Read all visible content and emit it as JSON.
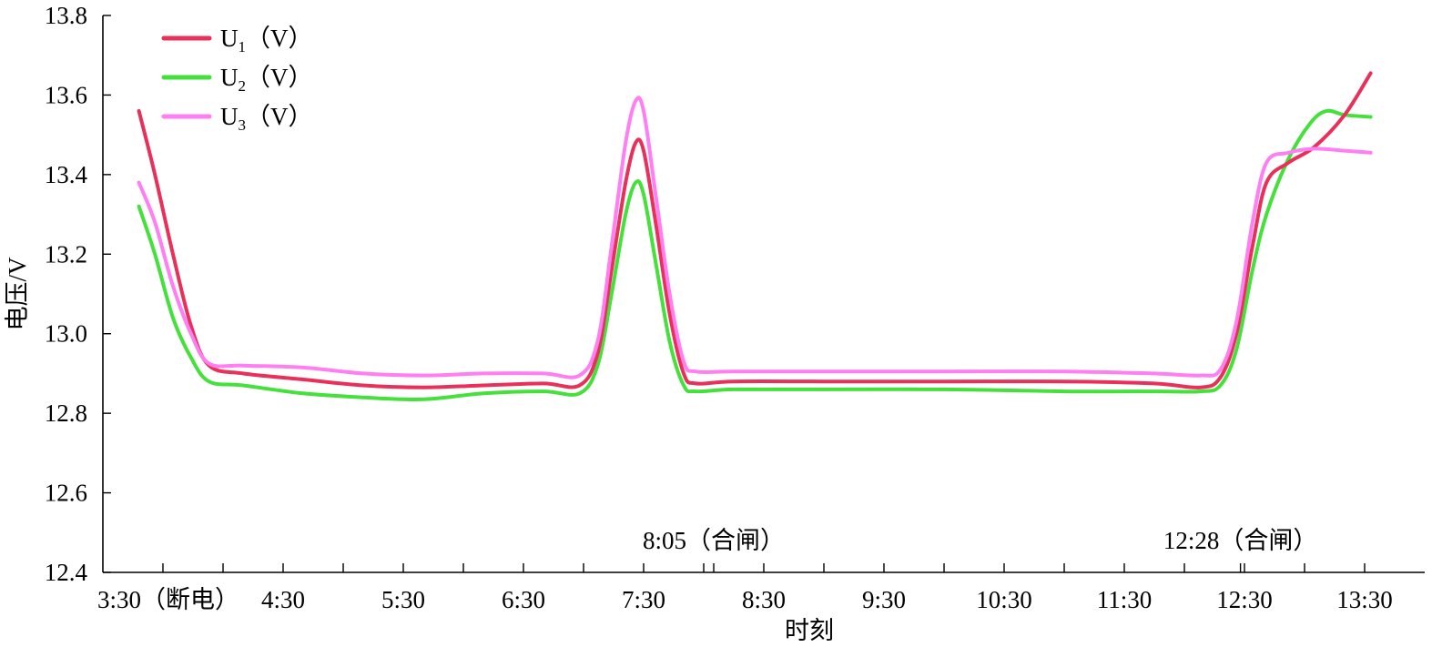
{
  "chart_data": {
    "type": "line",
    "xlabel": "时刻",
    "ylabel": "电压/V",
    "ylim": [
      12.4,
      13.8
    ],
    "yticks": [
      "12.4",
      "12.6",
      "12.8",
      "13.0",
      "13.2",
      "13.4",
      "13.6",
      "13.8"
    ],
    "xlim": [
      "3:00",
      "14:00"
    ],
    "xticks": [
      "3:30（断电）",
      "4:30",
      "5:30",
      "6:30",
      "7:30",
      "8:30",
      "9:30",
      "10:30",
      "11:30",
      "12:30",
      "13:30"
    ],
    "annotations": [
      {
        "text": "8:05（合闸）",
        "x": "8:05"
      },
      {
        "text": "12:28（合闸）",
        "x": "12:28"
      }
    ],
    "legend": {
      "position": "top-left"
    },
    "grid": false,
    "series": [
      {
        "name": "U1(V)",
        "label_main": "U",
        "label_sub": "1",
        "label_unit": "（V）",
        "color": "#e8315a",
        "points": [
          [
            "3:18",
            13.56
          ],
          [
            "3:26",
            13.4
          ],
          [
            "3:35",
            13.2
          ],
          [
            "3:44",
            13.02
          ],
          [
            "3:53",
            12.92
          ],
          [
            "4:10",
            12.9
          ],
          [
            "4:40",
            12.885
          ],
          [
            "5:10",
            12.87
          ],
          [
            "5:40",
            12.865
          ],
          [
            "6:10",
            12.87
          ],
          [
            "6:40",
            12.875
          ],
          [
            "6:58",
            12.87
          ],
          [
            "7:07",
            12.95
          ],
          [
            "7:14",
            13.16
          ],
          [
            "7:21",
            13.38
          ],
          [
            "7:26",
            13.48
          ],
          [
            "7:30",
            13.46
          ],
          [
            "7:36",
            13.28
          ],
          [
            "7:43",
            13.05
          ],
          [
            "7:50",
            12.9
          ],
          [
            "7:56",
            12.875
          ],
          [
            "8:15",
            12.88
          ],
          [
            "9:00",
            12.88
          ],
          [
            "10:00",
            12.88
          ],
          [
            "11:00",
            12.88
          ],
          [
            "11:45",
            12.875
          ],
          [
            "12:08",
            12.865
          ],
          [
            "12:18",
            12.89
          ],
          [
            "12:26",
            13.0
          ],
          [
            "12:34",
            13.22
          ],
          [
            "12:41",
            13.38
          ],
          [
            "12:52",
            13.43
          ],
          [
            "13:05",
            13.47
          ],
          [
            "13:20",
            13.55
          ],
          [
            "13:33",
            13.655
          ]
        ]
      },
      {
        "name": "U2(V)",
        "label_main": "U",
        "label_sub": "2",
        "label_unit": "（V）",
        "color": "#46e03c",
        "points": [
          [
            "3:18",
            13.32
          ],
          [
            "3:26",
            13.2
          ],
          [
            "3:35",
            13.04
          ],
          [
            "3:44",
            12.94
          ],
          [
            "3:53",
            12.88
          ],
          [
            "4:10",
            12.87
          ],
          [
            "4:40",
            12.85
          ],
          [
            "5:10",
            12.84
          ],
          [
            "5:40",
            12.835
          ],
          [
            "6:10",
            12.85
          ],
          [
            "6:40",
            12.855
          ],
          [
            "6:58",
            12.85
          ],
          [
            "7:07",
            12.92
          ],
          [
            "7:14",
            13.1
          ],
          [
            "7:21",
            13.3
          ],
          [
            "7:26",
            13.38
          ],
          [
            "7:30",
            13.35
          ],
          [
            "7:36",
            13.18
          ],
          [
            "7:43",
            12.98
          ],
          [
            "7:50",
            12.87
          ],
          [
            "7:56",
            12.855
          ],
          [
            "8:15",
            12.86
          ],
          [
            "9:00",
            12.86
          ],
          [
            "10:00",
            12.86
          ],
          [
            "11:00",
            12.855
          ],
          [
            "11:45",
            12.855
          ],
          [
            "12:08",
            12.855
          ],
          [
            "12:18",
            12.87
          ],
          [
            "12:26",
            12.96
          ],
          [
            "12:34",
            13.16
          ],
          [
            "12:41",
            13.3
          ],
          [
            "12:52",
            13.44
          ],
          [
            "13:03",
            13.53
          ],
          [
            "13:11",
            13.56
          ],
          [
            "13:20",
            13.55
          ],
          [
            "13:33",
            13.545
          ]
        ]
      },
      {
        "name": "U3(V)",
        "label_main": "U",
        "label_sub": "3",
        "label_unit": "（V）",
        "color": "#ff7ef2",
        "points": [
          [
            "3:18",
            13.38
          ],
          [
            "3:26",
            13.28
          ],
          [
            "3:35",
            13.12
          ],
          [
            "3:44",
            13.0
          ],
          [
            "3:53",
            12.925
          ],
          [
            "4:10",
            12.92
          ],
          [
            "4:40",
            12.915
          ],
          [
            "5:10",
            12.9
          ],
          [
            "5:40",
            12.895
          ],
          [
            "6:10",
            12.9
          ],
          [
            "6:40",
            12.9
          ],
          [
            "6:58",
            12.895
          ],
          [
            "7:07",
            12.98
          ],
          [
            "7:14",
            13.22
          ],
          [
            "7:21",
            13.48
          ],
          [
            "7:26",
            13.585
          ],
          [
            "7:30",
            13.56
          ],
          [
            "7:36",
            13.35
          ],
          [
            "7:43",
            13.1
          ],
          [
            "7:50",
            12.93
          ],
          [
            "7:56",
            12.905
          ],
          [
            "8:15",
            12.905
          ],
          [
            "9:00",
            12.905
          ],
          [
            "10:00",
            12.905
          ],
          [
            "11:00",
            12.905
          ],
          [
            "11:45",
            12.9
          ],
          [
            "12:08",
            12.895
          ],
          [
            "12:18",
            12.91
          ],
          [
            "12:26",
            13.03
          ],
          [
            "12:34",
            13.28
          ],
          [
            "12:41",
            13.43
          ],
          [
            "12:52",
            13.455
          ],
          [
            "13:05",
            13.465
          ],
          [
            "13:20",
            13.46
          ],
          [
            "13:33",
            13.455
          ]
        ]
      }
    ]
  }
}
